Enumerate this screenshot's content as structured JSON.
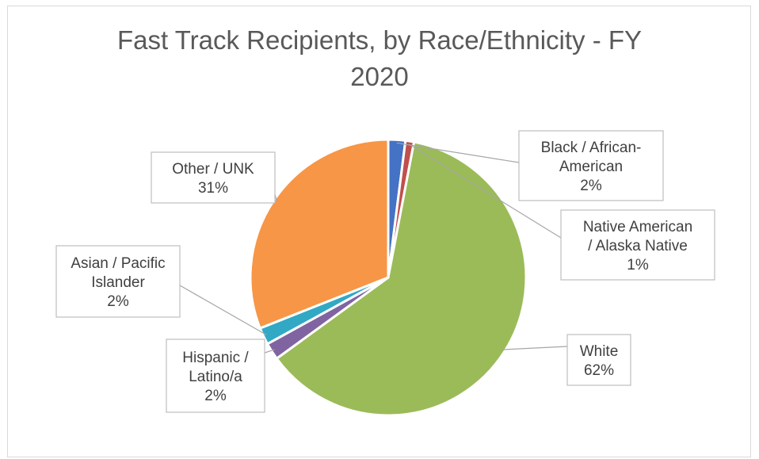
{
  "chart_data": {
    "type": "pie",
    "title_lines": [
      "Fast Track Recipients, by Race/Ethnicity - FY",
      "2020"
    ],
    "slices": [
      {
        "name": "Black / African-American",
        "value": 2,
        "percent_label": "2%",
        "color": "#4472c4",
        "label_lines": [
          "Black / African-",
          "American",
          "2%"
        ]
      },
      {
        "name": "Native American / Alaska Native",
        "value": 1,
        "percent_label": "1%",
        "color": "#c0504d",
        "label_lines": [
          "Native American",
          "/ Alaska Native",
          "1%"
        ]
      },
      {
        "name": "White",
        "value": 62,
        "percent_label": "62%",
        "color": "#9bbb59",
        "label_lines": [
          "White",
          "62%"
        ]
      },
      {
        "name": "Hispanic / Latino/a",
        "value": 2,
        "percent_label": "2%",
        "color": "#8064a2",
        "label_lines": [
          "Hispanic /",
          "Latino/a",
          "2%"
        ]
      },
      {
        "name": "Asian / Pacific Islander",
        "value": 2,
        "percent_label": "2%",
        "color": "#31a9c4",
        "label_lines": [
          "Asian / Pacific",
          "Islander",
          "2%"
        ]
      },
      {
        "name": "Other / UNK",
        "value": 31,
        "percent_label": "31%",
        "color": "#f79646",
        "label_lines": [
          "Other / UNK",
          "31%"
        ]
      }
    ]
  }
}
